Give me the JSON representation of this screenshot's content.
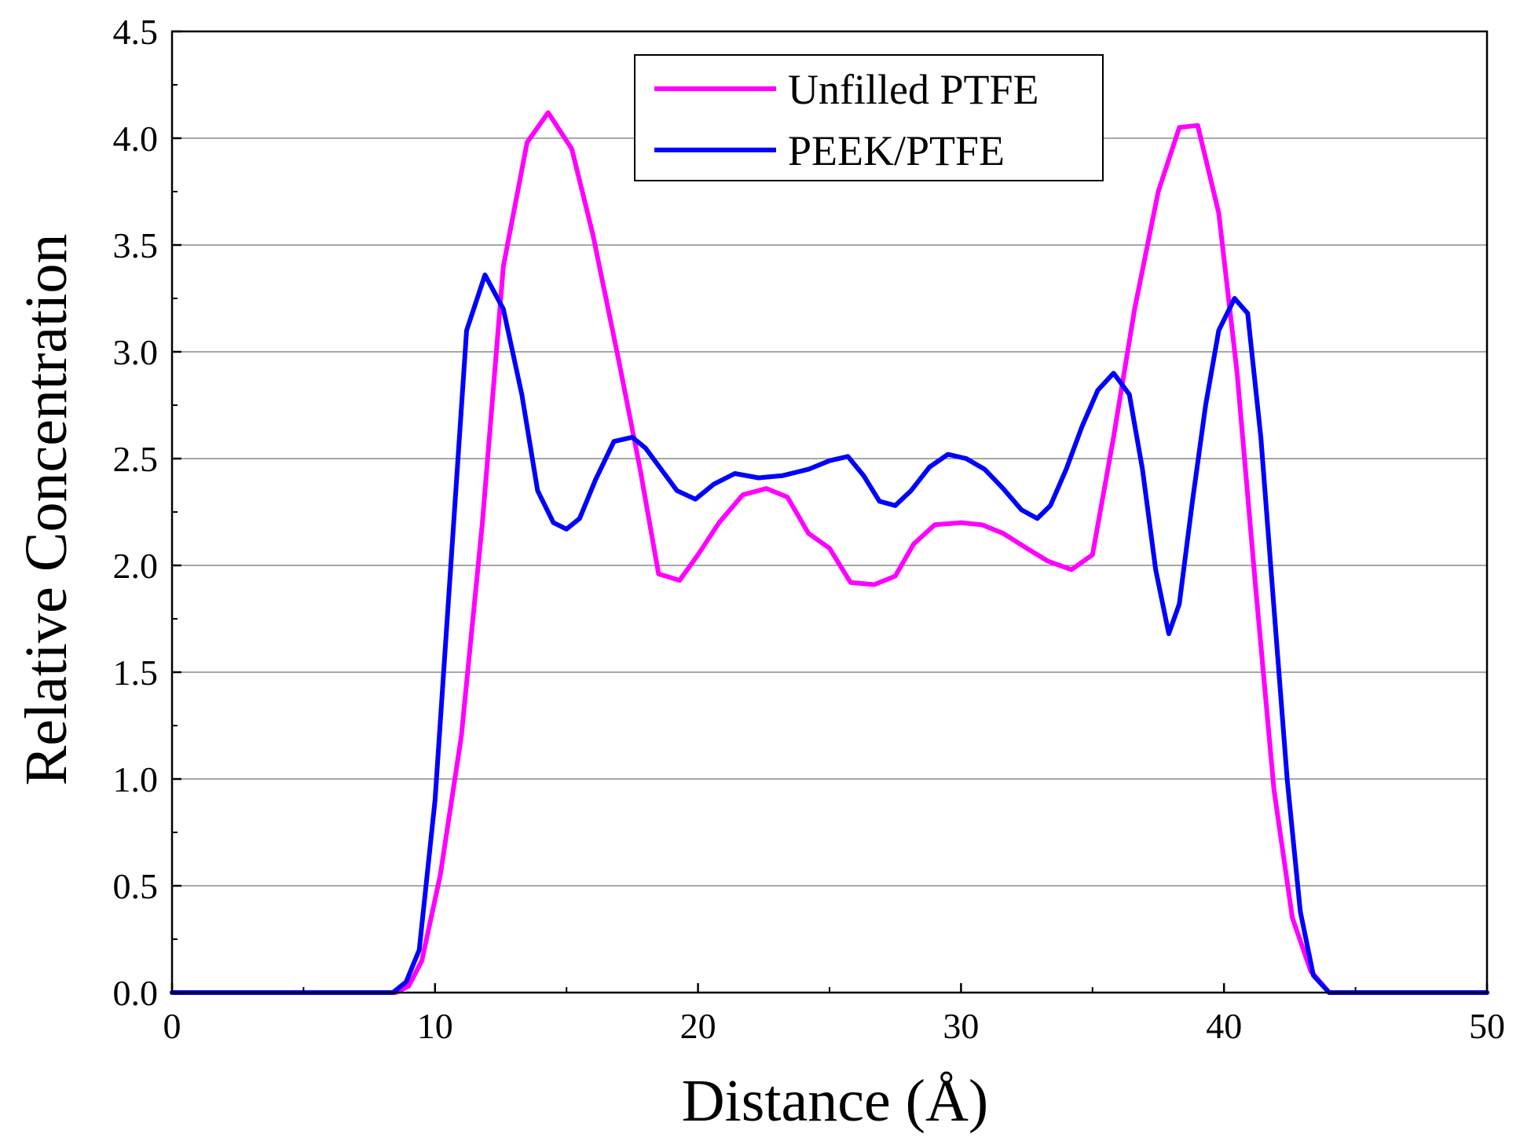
{
  "chart_data": {
    "type": "line",
    "title": "",
    "xlabel": "Distance (Å)",
    "ylabel": "Relative  Concentration",
    "xlim": [
      0,
      50
    ],
    "ylim": [
      0,
      4.5
    ],
    "grid": "horizontal",
    "legend_position": "top-center",
    "x_ticks": [
      0,
      10,
      20,
      30,
      40,
      50
    ],
    "x_tick_labels": [
      "0",
      "10",
      "20",
      "30",
      "40",
      "50"
    ],
    "y_ticks": [
      0,
      0.5,
      1,
      1.5,
      2,
      2.5,
      3,
      3.5,
      4,
      4.5
    ],
    "y_tick_labels": [
      "0.0",
      "0.5",
      "1.0",
      "1.5",
      "2.0",
      "2.5",
      "3.0",
      "3.5",
      "4.0",
      "4.5"
    ],
    "series": [
      {
        "name": "Unfilled PTFE",
        "color": "#ff00ff",
        "x": [
          0,
          8.5,
          9.0,
          9.5,
          10.2,
          11.0,
          11.8,
          12.6,
          13.5,
          14.3,
          15.2,
          16.0,
          17.0,
          17.8,
          18.5,
          19.3,
          20.0,
          20.8,
          21.7,
          22.6,
          23.4,
          24.2,
          25.0,
          25.8,
          26.7,
          27.5,
          28.2,
          29.0,
          30.0,
          30.8,
          31.6,
          32.5,
          33.3,
          34.2,
          35.0,
          35.8,
          36.6,
          37.5,
          38.3,
          39.0,
          39.8,
          40.5,
          41.2,
          41.9,
          42.6,
          43.3,
          44.0,
          50
        ],
        "y": [
          0,
          0,
          0.03,
          0.15,
          0.55,
          1.2,
          2.2,
          3.4,
          3.98,
          4.12,
          3.95,
          3.55,
          2.95,
          2.45,
          1.96,
          1.93,
          2.05,
          2.2,
          2.33,
          2.36,
          2.32,
          2.15,
          2.08,
          1.92,
          1.91,
          1.95,
          2.1,
          2.19,
          2.2,
          2.19,
          2.15,
          2.08,
          2.02,
          1.98,
          2.05,
          2.6,
          3.2,
          3.75,
          4.05,
          4.06,
          3.65,
          2.9,
          1.9,
          0.95,
          0.35,
          0.1,
          0,
          0
        ]
      },
      {
        "name": "PEEK/PTFE",
        "color": "#0000ff",
        "x": [
          0,
          8.4,
          8.9,
          9.4,
          10.0,
          10.6,
          11.2,
          11.9,
          12.6,
          13.3,
          13.9,
          14.5,
          15.0,
          15.5,
          16.1,
          16.8,
          17.5,
          18.0,
          18.6,
          19.2,
          19.9,
          20.6,
          21.4,
          22.3,
          23.2,
          24.2,
          25.0,
          25.7,
          26.3,
          26.9,
          27.5,
          28.1,
          28.8,
          29.5,
          30.2,
          30.9,
          31.6,
          32.3,
          32.9,
          33.4,
          34.0,
          34.6,
          35.2,
          35.8,
          36.4,
          36.9,
          37.4,
          37.9,
          38.3,
          38.8,
          39.3,
          39.8,
          40.4,
          40.9,
          41.4,
          41.9,
          42.4,
          42.9,
          43.4,
          44.0,
          50
        ],
        "y": [
          0,
          0,
          0.05,
          0.2,
          0.9,
          2.0,
          3.1,
          3.36,
          3.2,
          2.8,
          2.35,
          2.2,
          2.17,
          2.22,
          2.4,
          2.58,
          2.6,
          2.55,
          2.45,
          2.35,
          2.31,
          2.38,
          2.43,
          2.41,
          2.42,
          2.45,
          2.49,
          2.51,
          2.42,
          2.3,
          2.28,
          2.35,
          2.46,
          2.52,
          2.5,
          2.45,
          2.36,
          2.26,
          2.22,
          2.28,
          2.45,
          2.65,
          2.82,
          2.9,
          2.8,
          2.45,
          1.98,
          1.68,
          1.82,
          2.3,
          2.75,
          3.1,
          3.25,
          3.18,
          2.6,
          1.8,
          1.0,
          0.38,
          0.08,
          0,
          0
        ]
      }
    ]
  }
}
